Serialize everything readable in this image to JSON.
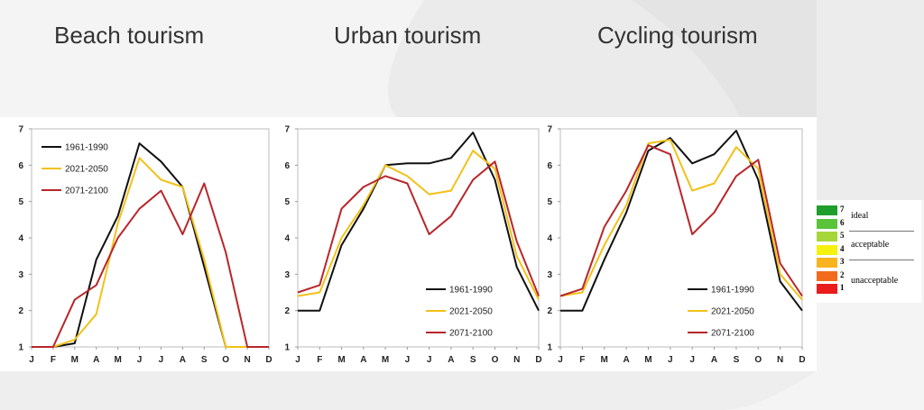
{
  "titles": [
    "Beach tourism",
    "Urban tourism",
    "Cycling tourism"
  ],
  "colors": {
    "1961-1990": "#111111",
    "2021-2050": "#f2c118",
    "2071-2100": "#b8262b"
  },
  "chart_data": [
    {
      "type": "line",
      "title": "Beach tourism",
      "categories": [
        "J",
        "F",
        "M",
        "A",
        "M",
        "J",
        "J",
        "A",
        "S",
        "O",
        "N",
        "D"
      ],
      "ylim": [
        1,
        7
      ],
      "yticks": [
        1,
        2,
        3,
        4,
        5,
        6,
        7
      ],
      "grid": false,
      "legend_position": "top-left",
      "series": [
        {
          "name": "1961-1990",
          "values": [
            1.0,
            1.0,
            1.1,
            3.4,
            4.6,
            6.6,
            6.1,
            5.4,
            3.2,
            1.0,
            1.0,
            1.0
          ]
        },
        {
          "name": "2021-2050",
          "values": [
            1.0,
            1.0,
            1.2,
            1.9,
            4.4,
            6.2,
            5.6,
            5.4,
            3.4,
            1.0,
            1.0,
            1.0
          ]
        },
        {
          "name": "2071-2100",
          "values": [
            1.0,
            1.0,
            2.3,
            2.7,
            4.0,
            4.8,
            5.3,
            4.1,
            5.5,
            3.6,
            1.0,
            1.0
          ]
        }
      ]
    },
    {
      "type": "line",
      "title": "Urban tourism",
      "categories": [
        "J",
        "F",
        "M",
        "A",
        "M",
        "J",
        "J",
        "A",
        "S",
        "O",
        "N",
        "D"
      ],
      "ylim": [
        1,
        7
      ],
      "yticks": [
        1,
        2,
        3,
        4,
        5,
        6,
        7
      ],
      "grid": false,
      "legend_position": "bottom-right",
      "series": [
        {
          "name": "1961-1990",
          "values": [
            2.0,
            2.0,
            3.8,
            4.8,
            6.0,
            6.05,
            6.05,
            6.2,
            6.9,
            5.6,
            3.2,
            2.0
          ]
        },
        {
          "name": "2021-2050",
          "values": [
            2.4,
            2.5,
            4.0,
            4.9,
            6.0,
            5.7,
            5.2,
            5.3,
            6.4,
            5.9,
            3.5,
            2.3
          ]
        },
        {
          "name": "2071-2100",
          "values": [
            2.5,
            2.7,
            4.8,
            5.4,
            5.7,
            5.5,
            4.1,
            4.6,
            5.6,
            6.1,
            3.9,
            2.4
          ]
        }
      ]
    },
    {
      "type": "line",
      "title": "Cycling tourism",
      "categories": [
        "J",
        "F",
        "M",
        "A",
        "M",
        "J",
        "J",
        "A",
        "S",
        "O",
        "N",
        "D"
      ],
      "ylim": [
        1,
        7
      ],
      "yticks": [
        1,
        2,
        3,
        4,
        5,
        6,
        7
      ],
      "grid": false,
      "legend_position": "bottom-right",
      "series": [
        {
          "name": "1961-1990",
          "values": [
            2.0,
            2.0,
            3.4,
            4.7,
            6.4,
            6.75,
            6.05,
            6.3,
            6.95,
            5.6,
            2.8,
            2.0
          ]
        },
        {
          "name": "2021-2050",
          "values": [
            2.4,
            2.5,
            3.8,
            4.9,
            6.6,
            6.7,
            5.3,
            5.5,
            6.5,
            5.9,
            3.0,
            2.3
          ]
        },
        {
          "name": "2071-2100",
          "values": [
            2.4,
            2.6,
            4.3,
            5.3,
            6.55,
            6.3,
            4.1,
            4.7,
            5.7,
            6.15,
            3.3,
            2.4
          ]
        }
      ]
    }
  ],
  "scale_legend": {
    "items": [
      {
        "value": "7",
        "color": "#1f9e2c"
      },
      {
        "value": "6",
        "color": "#59c43a"
      },
      {
        "value": "5",
        "color": "#a7d63a"
      },
      {
        "value": "4",
        "color": "#f5f10c"
      },
      {
        "value": "3",
        "color": "#f9b31e"
      },
      {
        "value": "2",
        "color": "#f46a1c"
      },
      {
        "value": "1",
        "color": "#ea1c1c"
      }
    ],
    "labels": {
      "ideal": "ideal",
      "acceptable": "acceptable",
      "unacceptable": "unacceptable"
    }
  }
}
